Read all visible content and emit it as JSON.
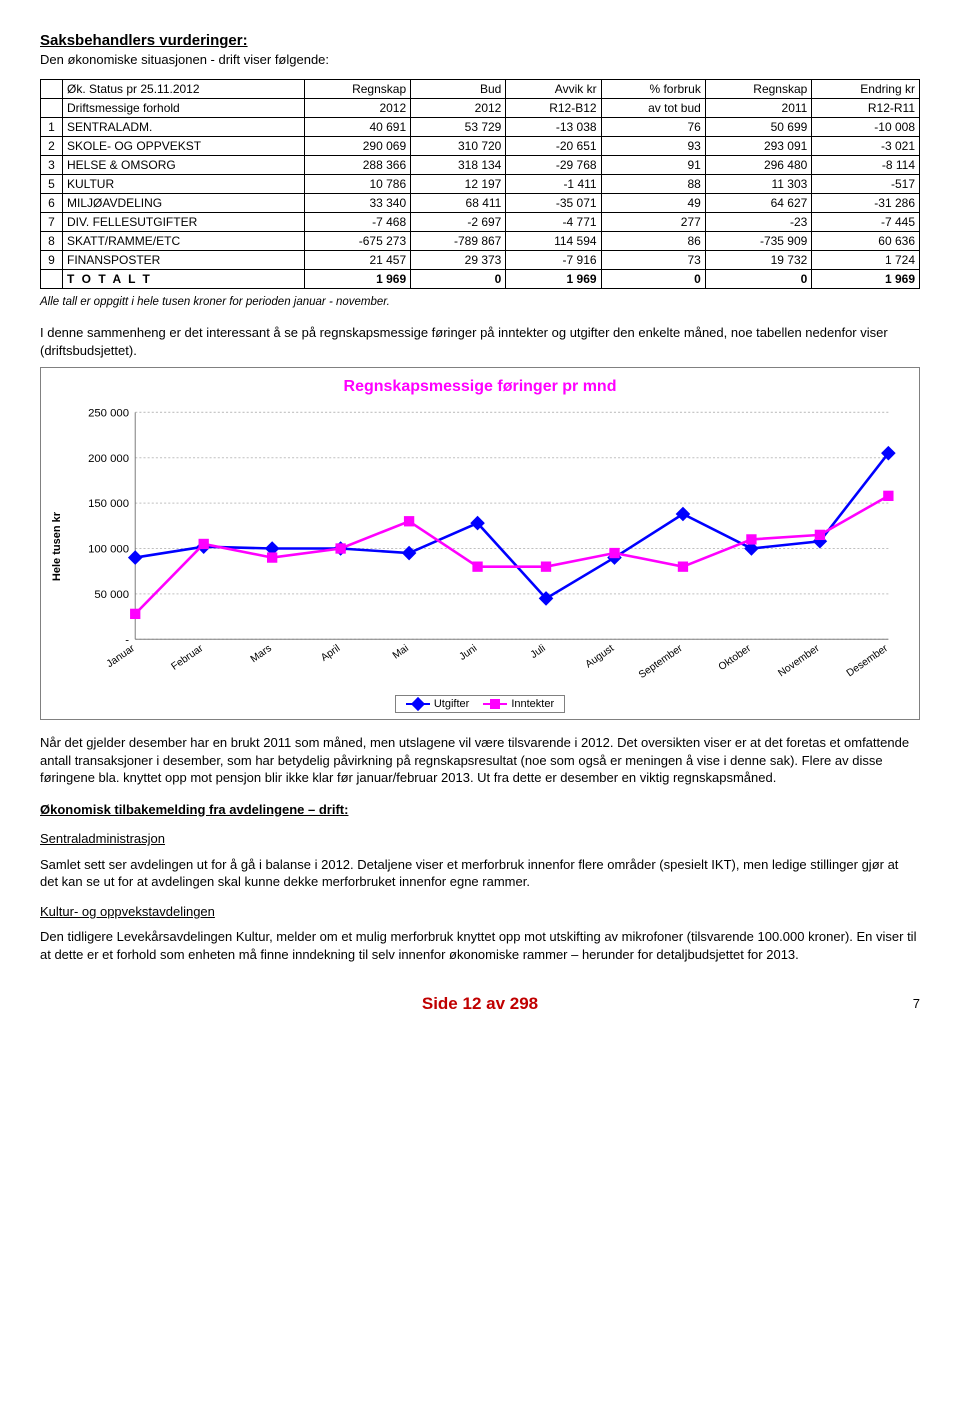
{
  "title": "Saksbehandlers vurderinger:",
  "intro": "Den økonomiske situasjonen - drift viser følgende:",
  "table": {
    "header_rows": [
      [
        "",
        "Øk. Status pr 25.11.2012",
        "Regnskap",
        "Bud",
        "Avvik kr",
        "% forbruk",
        "Regnskap",
        "Endring kr"
      ],
      [
        "",
        "Driftsmessige forhold",
        "2012",
        "2012",
        "R12-B12",
        "av tot bud",
        "2011",
        "R12-R11"
      ]
    ],
    "rows": [
      {
        "idx": "1",
        "label": "SENTRALADM.",
        "c": [
          "40 691",
          "53 729",
          "-13 038",
          "76",
          "50 699",
          "-10 008"
        ]
      },
      {
        "idx": "2",
        "label": "SKOLE- OG OPPVEKST",
        "c": [
          "290 069",
          "310 720",
          "-20 651",
          "93",
          "293 091",
          "-3 021"
        ]
      },
      {
        "idx": "3",
        "label": "HELSE & OMSORG",
        "c": [
          "288 366",
          "318 134",
          "-29 768",
          "91",
          "296 480",
          "-8 114"
        ]
      },
      {
        "idx": "5",
        "label": "KULTUR",
        "c": [
          "10 786",
          "12 197",
          "-1 411",
          "88",
          "11 303",
          "-517"
        ]
      },
      {
        "idx": "6",
        "label": "MILJØAVDELING",
        "c": [
          "33 340",
          "68 411",
          "-35 071",
          "49",
          "64 627",
          "-31 286"
        ]
      },
      {
        "idx": "7",
        "label": "DIV. FELLESUTGIFTER",
        "c": [
          "-7 468",
          "-2 697",
          "-4 771",
          "277",
          "-23",
          "-7 445"
        ]
      },
      {
        "idx": "8",
        "label": "SKATT/RAMME/ETC",
        "c": [
          "-675 273",
          "-789 867",
          "114 594",
          "86",
          "-735 909",
          "60 636"
        ]
      },
      {
        "idx": "9",
        "label": "FINANSPOSTER",
        "c": [
          "21 457",
          "29 373",
          "-7 916",
          "73",
          "19 732",
          "1 724"
        ]
      }
    ],
    "total": {
      "label": "T O T A L T",
      "c": [
        "1 969",
        "0",
        "1 969",
        "0",
        "0",
        "1 969"
      ]
    }
  },
  "table_note": "Alle tall er oppgitt i hele tusen kroner for perioden januar - november.",
  "para_before_chart": "I denne sammenheng er det interessant å se på regnskapsmessige føringer på inntekter og utgifter den enkelte måned, noe tabellen nedenfor viser (driftsbudsjettet).",
  "chart": {
    "title": "Regnskapsmessige føringer pr mnd",
    "type": "line",
    "ylabel": "Hele tusen kr",
    "x_categories": [
      "Januar",
      "Februar",
      "Mars",
      "April",
      "Mai",
      "Juni",
      "Juli",
      "August",
      "September",
      "Oktober",
      "November",
      "Desember"
    ],
    "y_ticks": [
      "-",
      "50 000",
      "100 000",
      "150 000",
      "200 000",
      "250 000"
    ],
    "ylim": [
      0,
      250000
    ],
    "series": [
      {
        "name": "Utgifter",
        "color": "#0000ff",
        "marker": "diamond",
        "values": [
          90000,
          102000,
          100000,
          100000,
          95000,
          128000,
          45000,
          90000,
          138000,
          100000,
          108000,
          205000
        ]
      },
      {
        "name": "Inntekter",
        "color": "#ff00ff",
        "marker": "square",
        "values": [
          28000,
          105000,
          90000,
          100000,
          130000,
          80000,
          80000,
          95000,
          80000,
          110000,
          115000,
          158000
        ]
      }
    ],
    "grid_color": "#c0c0c0",
    "background_color": "#ffffff",
    "axis_color": "#808080",
    "title_color": "#ff00ff",
    "title_fontsize": 16
  },
  "para_after_chart": "Når det gjelder desember har en brukt 2011 som måned, men utslagene vil være tilsvarende i 2012. Det oversikten viser er at det foretas et omfattende antall transaksjoner i desember, som har betydelig påvirkning på regnskapsresultat (noe som også er meningen å vise i denne sak). Flere av disse føringene bla. knyttet opp mot pensjon blir ikke klar før januar/februar 2013. Ut fra dette er desember en viktig regnskapsmåned.",
  "feedback_heading": "Økonomisk tilbakemelding fra avdelingene – drift:",
  "sections": [
    {
      "heading": "Sentraladministrasjon",
      "body": "Samlet sett ser avdelingen ut for å gå i balanse i 2012. Detaljene viser et merforbruk innenfor flere områder (spesielt IKT), men ledige stillinger gjør at det kan se ut for at avdelingen skal kunne dekke merforbruket innenfor egne rammer."
    },
    {
      "heading": "Kultur- og oppvekstavdelingen",
      "body": "Den tidligere Levekårsavdelingen Kultur, melder om et mulig merforbruk knyttet opp mot utskifting av mikrofoner (tilsvarende 100.000 kroner). En viser til at dette er et forhold som enheten må finne inndekning til selv innenfor økonomiske rammer – herunder for detaljbudsjettet for 2013."
    }
  ],
  "footer": {
    "side": "Side 12 av 298",
    "page": "7"
  }
}
